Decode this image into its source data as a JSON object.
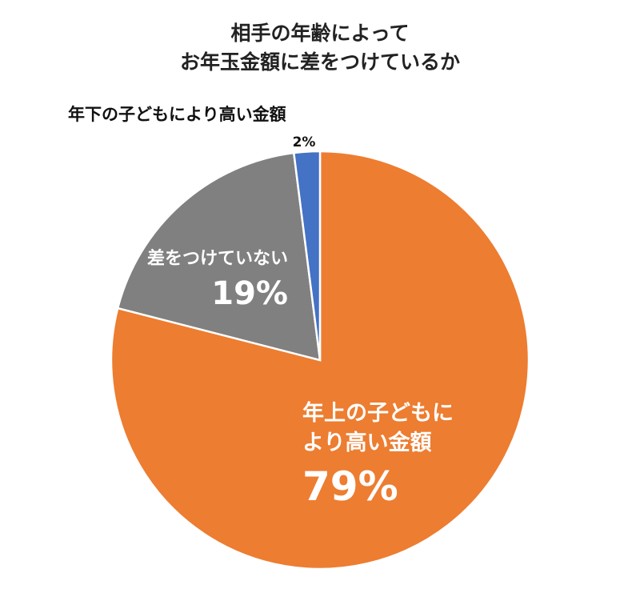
{
  "chart_data": {
    "type": "pie",
    "title_lines": [
      "相手の年齢によって",
      "お年玉金額に差をつけているか"
    ],
    "start_angle_deg": 0,
    "direction": "clockwise",
    "slices": [
      {
        "name": "年上の子どもに",
        "name_line2": "より高い金額",
        "value": 79,
        "label": "79%",
        "color": "#ED7D31"
      },
      {
        "name": "差をつけていない",
        "value": 19,
        "label": "19%",
        "color": "#808080"
      },
      {
        "name": "年下の子どもにより高い金額",
        "value": 2,
        "label": "2%",
        "color": "#4472C4"
      }
    ]
  }
}
